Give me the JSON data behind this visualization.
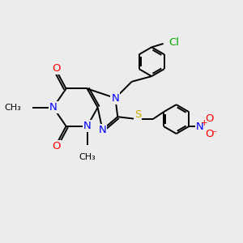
{
  "background_color": "#ececec",
  "atom_colors": {
    "N": "#0000ff",
    "O": "#ff0000",
    "S": "#ccaa00",
    "Cl": "#00aa00"
  },
  "bond_color": "#000000",
  "bond_width": 1.4,
  "font_size": 9.5
}
